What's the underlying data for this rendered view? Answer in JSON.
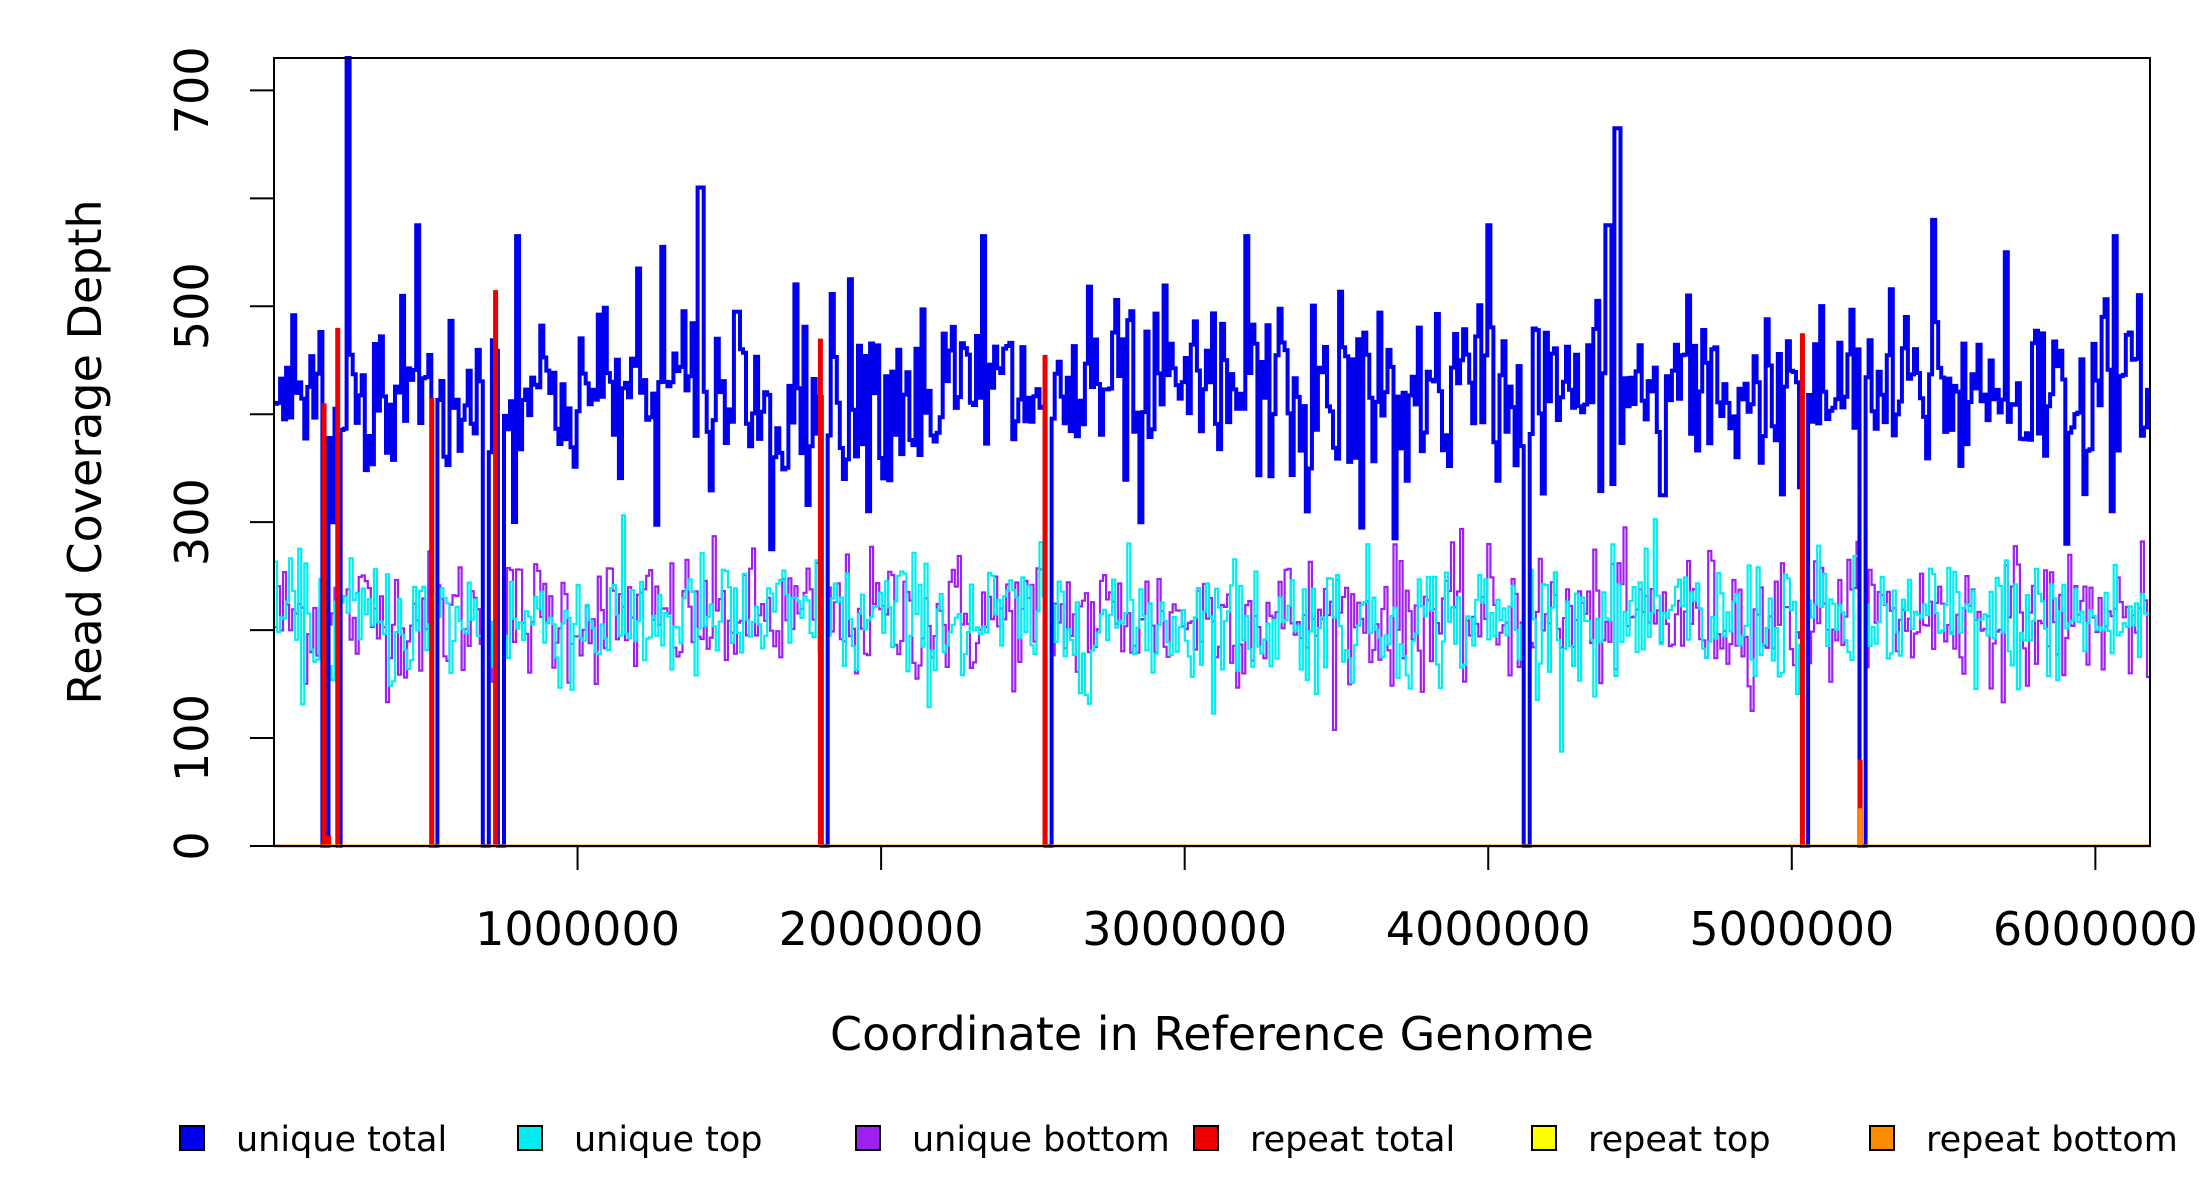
{
  "chart_data": {
    "type": "line",
    "title": "",
    "xlabel": "Coordinate in Reference Genome",
    "ylabel": "Read Coverage Depth",
    "xlim": [
      0,
      6180000
    ],
    "ylim": [
      0,
      730
    ],
    "x_ticks": [
      1000000,
      2000000,
      3000000,
      4000000,
      5000000,
      6000000
    ],
    "x_tick_labels": [
      "1000000",
      "2000000",
      "3000000",
      "4000000",
      "5000000",
      "6000000"
    ],
    "y_ticks": [
      0,
      100,
      200,
      300,
      400,
      500,
      600,
      700
    ],
    "y_tick_labels": [
      "0",
      "100",
      "",
      "300",
      "",
      "500",
      "",
      "700"
    ],
    "grid": false,
    "legend_position": "bottom",
    "colors": {
      "unique_total": "#0000ee",
      "unique_top": "#00eeee",
      "unique_bottom": "#a020f0",
      "repeat_total": "#ee0000",
      "repeat_top": "#ffff00",
      "repeat_bottom": "#ff8c00"
    },
    "series": [
      {
        "name": "unique total",
        "key": "unique_total",
        "baseline": 420,
        "noise": 42,
        "outliers": [
          {
            "x": 190000,
            "y": 300
          },
          {
            "x": 195000,
            "y": 405
          },
          {
            "x": 240000,
            "y": 733
          },
          {
            "x": 250000,
            "y": 455
          },
          {
            "x": 465000,
            "y": 575
          },
          {
            "x": 800000,
            "y": 565
          },
          {
            "x": 1195000,
            "y": 535
          },
          {
            "x": 1275000,
            "y": 555
          },
          {
            "x": 1400000,
            "y": 610
          },
          {
            "x": 1520000,
            "y": 495
          },
          {
            "x": 1635000,
            "y": 275
          },
          {
            "x": 1890000,
            "y": 525
          },
          {
            "x": 2330000,
            "y": 565
          },
          {
            "x": 2850000,
            "y": 300
          },
          {
            "x": 3200000,
            "y": 565
          },
          {
            "x": 3400000,
            "y": 310
          },
          {
            "x": 3580000,
            "y": 295
          },
          {
            "x": 3690000,
            "y": 285
          },
          {
            "x": 4000000,
            "y": 575
          },
          {
            "x": 4390000,
            "y": 575
          },
          {
            "x": 4420000,
            "y": 665
          },
          {
            "x": 4570000,
            "y": 325
          },
          {
            "x": 5460000,
            "y": 580
          },
          {
            "x": 5700000,
            "y": 550
          },
          {
            "x": 5900000,
            "y": 280
          },
          {
            "x": 6060000,
            "y": 565
          }
        ]
      },
      {
        "name": "unique top",
        "key": "unique_top",
        "baseline": 208,
        "noise": 30
      },
      {
        "name": "unique bottom",
        "key": "unique_bottom",
        "baseline": 212,
        "noise": 30
      },
      {
        "name": "repeat total",
        "key": "repeat_total",
        "values_at": [
          {
            "x": 165000,
            "y": 410
          },
          {
            "x": 180000,
            "y": 10
          },
          {
            "x": 210000,
            "y": 480
          },
          {
            "x": 520000,
            "y": 415
          },
          {
            "x": 730000,
            "y": 515
          },
          {
            "x": 1800000,
            "y": 470
          },
          {
            "x": 2540000,
            "y": 455
          },
          {
            "x": 5035000,
            "y": 475
          },
          {
            "x": 5225000,
            "y": 80
          }
        ]
      },
      {
        "name": "repeat top",
        "key": "repeat_top",
        "values_at": []
      },
      {
        "name": "repeat bottom",
        "key": "repeat_bottom",
        "values_at": [
          {
            "x": 5225000,
            "y": 35
          }
        ]
      }
    ],
    "coverage_gaps": [
      165000,
      210000,
      520000,
      695000,
      740000,
      1810000,
      2550000,
      4120000,
      5040000,
      5225000
    ],
    "legend": [
      {
        "key": "unique_total",
        "label": "unique total"
      },
      {
        "key": "unique_top",
        "label": "unique top"
      },
      {
        "key": "unique_bottom",
        "label": "unique bottom"
      },
      {
        "key": "repeat_total",
        "label": "repeat total"
      },
      {
        "key": "repeat_top",
        "label": "repeat top"
      },
      {
        "key": "repeat_bottom",
        "label": "repeat bottom"
      }
    ]
  }
}
